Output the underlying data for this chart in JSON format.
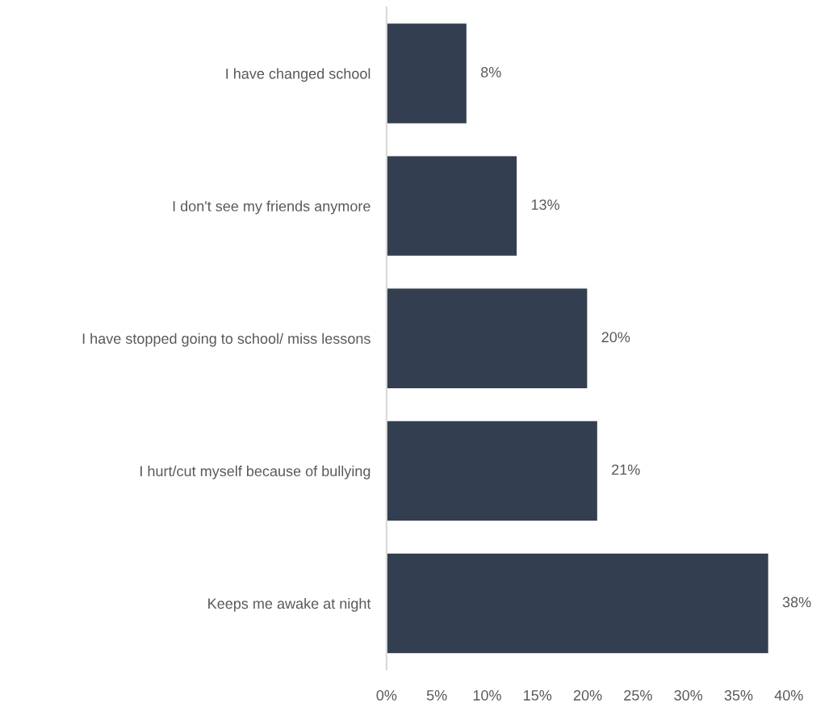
{
  "chart_data": {
    "type": "bar",
    "orientation": "horizontal",
    "categories": [
      "I have changed school",
      "I don't see my friends anymore",
      "I have stopped going to school/ miss lessons",
      "I hurt/cut myself because of bullying",
      "Keeps me awake at night"
    ],
    "values": [
      8,
      13,
      20,
      21,
      38
    ],
    "value_labels": [
      "8%",
      "13%",
      "20%",
      "21%",
      "38%"
    ],
    "color": "#333f50",
    "xlim": [
      0,
      40
    ],
    "xticks": [
      {
        "value": 0,
        "label": "0%"
      },
      {
        "value": 5,
        "label": "5%"
      },
      {
        "value": 10,
        "label": "10%"
      },
      {
        "value": 15,
        "label": "15%"
      },
      {
        "value": 20,
        "label": "20%"
      },
      {
        "value": 25,
        "label": "25%"
      },
      {
        "value": 30,
        "label": "30%"
      },
      {
        "value": 35,
        "label": "35%"
      },
      {
        "value": 40,
        "label": "40%"
      }
    ],
    "grid": false,
    "legend": false
  }
}
